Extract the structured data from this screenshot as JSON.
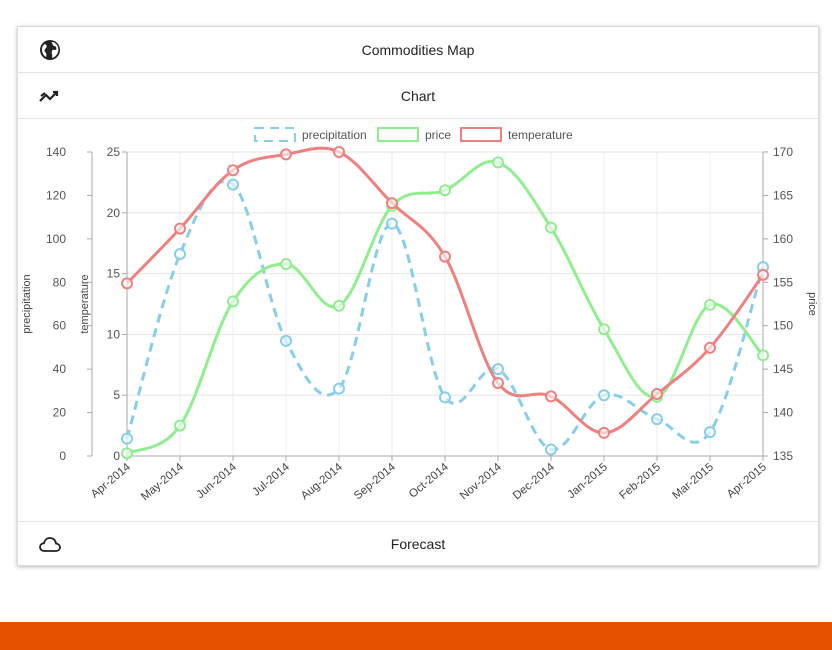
{
  "panels": {
    "map_title": "Commodities Map",
    "chart_title": "Chart",
    "forecast_title": "Forecast"
  },
  "icons": {
    "map": "globe-icon",
    "chart": "trending-icon",
    "forecast": "cloud-icon"
  },
  "colors": {
    "precipitation": "#87ceeb",
    "price": "#90ee90",
    "temperature": "#f08080",
    "footer": "#e65100"
  },
  "chart_data": {
    "type": "line",
    "categories": [
      "Apr-2014",
      "May-2014",
      "Jun-2014",
      "Jul-2014",
      "Aug-2014",
      "Sep-2014",
      "Oct-2014",
      "Nov-2014",
      "Dec-2014",
      "Jan-2015",
      "Feb-2015",
      "Mar-2015",
      "Apr-2015"
    ],
    "series": [
      {
        "name": "precipitation",
        "axis": "precipitation",
        "dashed": true,
        "values": [
          8,
          93,
          125,
          53,
          31,
          107,
          27,
          40,
          3,
          28,
          17,
          11,
          87
        ]
      },
      {
        "name": "price",
        "axis": "price",
        "dashed": false,
        "values": [
          135.3,
          138.5,
          152.8,
          157.1,
          152.3,
          163.8,
          165.6,
          168.8,
          161.3,
          149.6,
          141.8,
          152.4,
          146.6
        ]
      },
      {
        "name": "temperature",
        "axis": "temperature",
        "dashed": false,
        "values": [
          14.2,
          18.7,
          23.5,
          24.8,
          25.0,
          20.8,
          16.4,
          6.0,
          4.9,
          1.9,
          5.1,
          8.9,
          14.9
        ]
      }
    ],
    "axes": {
      "precipitation": {
        "label": "precipitation",
        "min": 0,
        "max": 140,
        "ticks": [
          0,
          20,
          40,
          60,
          80,
          100,
          120,
          140
        ]
      },
      "temperature": {
        "label": "temperature",
        "min": 0,
        "max": 25,
        "ticks": [
          0,
          5,
          10,
          15,
          20,
          25
        ]
      },
      "price": {
        "label": "price",
        "min": 135,
        "max": 170,
        "ticks": [
          135,
          140,
          145,
          150,
          155,
          160,
          165,
          170
        ]
      }
    },
    "legend": {
      "position": "top",
      "entries": [
        "precipitation",
        "price",
        "temperature"
      ]
    },
    "grid": true
  }
}
